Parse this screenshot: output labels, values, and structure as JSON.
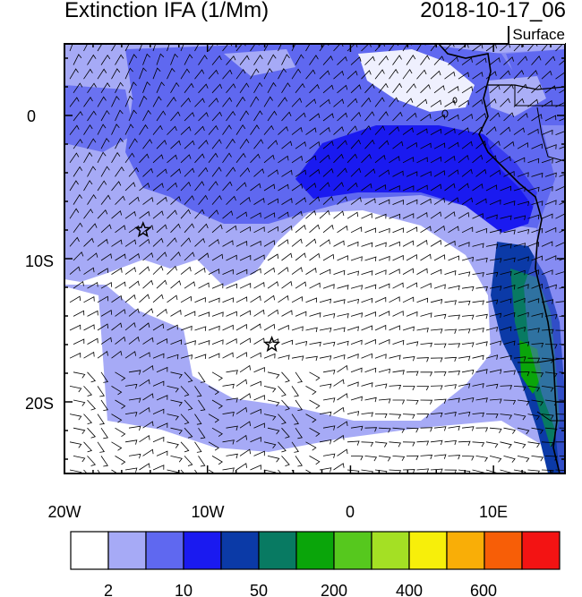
{
  "title_left": "Extinction IFA (1/Mm)",
  "title_right": "2018-10-17_06",
  "level_label": "Surface",
  "axes": {
    "x_labels": [
      "20W",
      "10W",
      "0",
      "10E"
    ],
    "y_labels": [
      "0",
      "10S",
      "20S"
    ]
  },
  "colorbar": {
    "colors": [
      "#ffffff",
      "#a6aaf6",
      "#5f68f0",
      "#1a1af0",
      "#0b3aa7",
      "#087a62",
      "#0aa50a",
      "#56c81e",
      "#a4e024",
      "#f7ef0a",
      "#f9ae07",
      "#f75e07",
      "#f31313"
    ],
    "labels": [
      "2",
      "10",
      "50",
      "200",
      "400",
      "600"
    ]
  },
  "markers": [
    {
      "name": "star-marker-west",
      "lon": -14.5,
      "lat": -8
    },
    {
      "name": "star-marker-center",
      "lon": -5.5,
      "lat": -16
    }
  ]
}
